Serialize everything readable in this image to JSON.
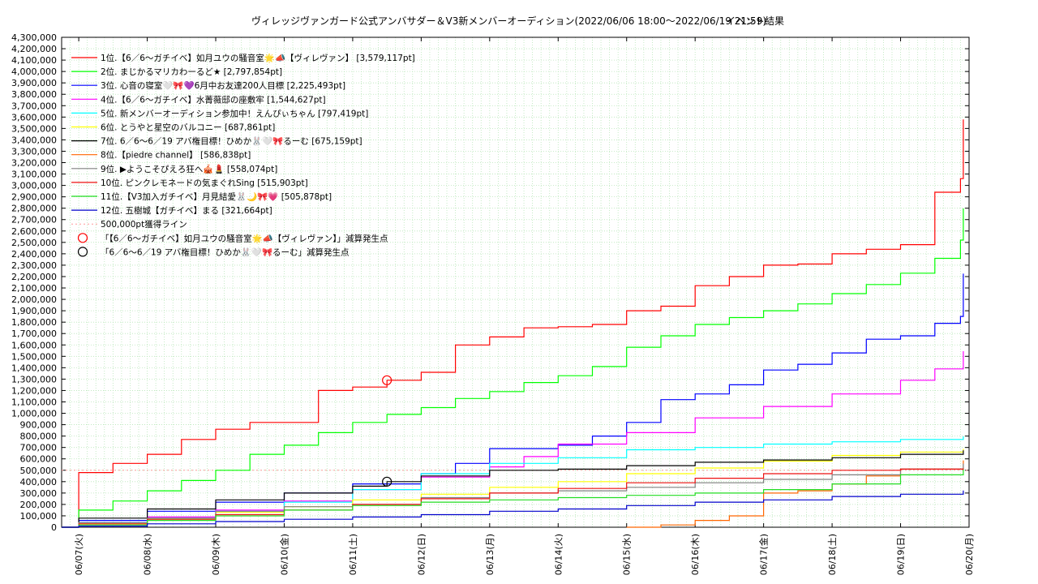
{
  "chart_data": {
    "type": "line",
    "title": "ヴィレッジヴァンガード公式アンバサダー＆V3新メンバーオーディション(2022/06/06 18:00〜2022/06/19 21:59)",
    "subtitle": "イベント結果",
    "ylim": [
      0,
      4300000
    ],
    "yticks": [
      "0",
      "100,000",
      "200,000",
      "300,000",
      "400,000",
      "500,000",
      "600,000",
      "700,000",
      "800,000",
      "900,000",
      "1,000,000",
      "1,100,000",
      "1,200,000",
      "1,300,000",
      "1,400,000",
      "1,500,000",
      "1,600,000",
      "1,700,000",
      "1,800,000",
      "1,900,000",
      "2,000,000",
      "2,100,000",
      "2,200,000",
      "2,300,000",
      "2,400,000",
      "2,500,000",
      "2,600,000",
      "2,700,000",
      "2,800,000",
      "2,900,000",
      "3,000,000",
      "3,100,000",
      "3,200,000",
      "3,300,000",
      "3,400,000",
      "3,500,000",
      "3,600,000",
      "3,700,000",
      "3,800,000",
      "3,900,000",
      "4,000,000",
      "4,100,000",
      "4,200,000",
      "4,300,000"
    ],
    "xticks": [
      "06/07(火)",
      "06/08(水)",
      "06/09(木)",
      "06/10(金)",
      "06/11(土)",
      "06/12(日)",
      "06/13(月)",
      "06/14(火)",
      "06/15(水)",
      "06/16(木)",
      "06/17(金)",
      "06/18(土)",
      "06/19(日)",
      "06/20(月)"
    ],
    "xlim": [
      "2022-06-06 18:00",
      "2022-06-20 00:00"
    ],
    "grid": true,
    "legend_position": "top-left",
    "series": [
      {
        "name": "1位.【6／6〜ガチイベ】如月ユウの騒音室🌟📣【ヴィレヴァン】 [3,579,117pt]",
        "color": "#ff0000",
        "x": [
          "2022-06-06 18:00",
          "2022-06-07 00:00",
          "2022-06-07 12:00",
          "2022-06-08 00:00",
          "2022-06-08 12:00",
          "2022-06-09 00:00",
          "2022-06-09 12:00",
          "2022-06-10 00:00",
          "2022-06-10 12:00",
          "2022-06-11 00:00",
          "2022-06-11 12:00",
          "2022-06-12 00:00",
          "2022-06-12 12:00",
          "2022-06-13 00:00",
          "2022-06-13 12:00",
          "2022-06-14 00:00",
          "2022-06-14 12:00",
          "2022-06-15 00:00",
          "2022-06-15 12:00",
          "2022-06-16 00:00",
          "2022-06-16 12:00",
          "2022-06-17 00:00",
          "2022-06-17 12:00",
          "2022-06-18 00:00",
          "2022-06-18 12:00",
          "2022-06-19 00:00",
          "2022-06-19 12:00",
          "2022-06-19 21:00",
          "2022-06-19 21:59"
        ],
        "y": [
          0,
          480000,
          560000,
          640000,
          770000,
          860000,
          920000,
          920000,
          1200000,
          1230000,
          1290000,
          1360000,
          1600000,
          1670000,
          1750000,
          1760000,
          1780000,
          1900000,
          1940000,
          2120000,
          2200000,
          2300000,
          2310000,
          2400000,
          2440000,
          2480000,
          2940000,
          3060000,
          3579117
        ]
      },
      {
        "name": "2位. まじかるマリカわーるど★ [2,797,854pt]",
        "color": "#00ff00",
        "x": [
          "2022-06-06 18:00",
          "2022-06-07 00:00",
          "2022-06-07 12:00",
          "2022-06-08 00:00",
          "2022-06-08 12:00",
          "2022-06-09 00:00",
          "2022-06-09 12:00",
          "2022-06-10 00:00",
          "2022-06-10 12:00",
          "2022-06-11 00:00",
          "2022-06-11 12:00",
          "2022-06-12 00:00",
          "2022-06-12 12:00",
          "2022-06-13 00:00",
          "2022-06-13 12:00",
          "2022-06-14 00:00",
          "2022-06-14 12:00",
          "2022-06-15 00:00",
          "2022-06-15 12:00",
          "2022-06-16 00:00",
          "2022-06-16 12:00",
          "2022-06-17 00:00",
          "2022-06-17 12:00",
          "2022-06-18 00:00",
          "2022-06-18 12:00",
          "2022-06-19 00:00",
          "2022-06-19 12:00",
          "2022-06-19 21:00",
          "2022-06-19 21:59"
        ],
        "y": [
          0,
          150000,
          230000,
          320000,
          410000,
          500000,
          640000,
          720000,
          830000,
          920000,
          990000,
          1050000,
          1130000,
          1190000,
          1270000,
          1330000,
          1410000,
          1580000,
          1680000,
          1780000,
          1840000,
          1900000,
          1960000,
          2050000,
          2130000,
          2230000,
          2360000,
          2520000,
          2797854
        ]
      },
      {
        "name": "3位. 心音の寝室🤍🎀💜6月中お友達200人目標 [2,225,493pt]",
        "color": "#0000ff",
        "x": [
          "2022-06-06 18:00",
          "2022-06-07 00:00",
          "2022-06-08 00:00",
          "2022-06-09 00:00",
          "2022-06-10 00:00",
          "2022-06-11 00:00",
          "2022-06-12 00:00",
          "2022-06-12 12:00",
          "2022-06-13 00:00",
          "2022-06-14 00:00",
          "2022-06-14 12:00",
          "2022-06-15 00:00",
          "2022-06-15 12:00",
          "2022-06-16 00:00",
          "2022-06-16 12:00",
          "2022-06-17 00:00",
          "2022-06-17 12:00",
          "2022-06-18 00:00",
          "2022-06-18 12:00",
          "2022-06-19 00:00",
          "2022-06-19 12:00",
          "2022-06-19 21:00",
          "2022-06-19 21:59"
        ],
        "y": [
          0,
          60000,
          140000,
          220000,
          300000,
          380000,
          470000,
          560000,
          690000,
          720000,
          800000,
          920000,
          1120000,
          1170000,
          1250000,
          1380000,
          1430000,
          1530000,
          1650000,
          1680000,
          1790000,
          1850000,
          2225493
        ]
      },
      {
        "name": "4位.【6／6〜ガチイベ】水菁薇邸の座敷牢 [1,544,627pt]",
        "color": "#ff00ff",
        "x": [
          "2022-06-06 18:00",
          "2022-06-07 00:00",
          "2022-06-08 00:00",
          "2022-06-09 00:00",
          "2022-06-10 00:00",
          "2022-06-11 00:00",
          "2022-06-12 00:00",
          "2022-06-13 00:00",
          "2022-06-13 12:00",
          "2022-06-14 00:00",
          "2022-06-15 00:00",
          "2022-06-16 00:00",
          "2022-06-17 00:00",
          "2022-06-18 00:00",
          "2022-06-19 00:00",
          "2022-06-19 12:00",
          "2022-06-19 21:59"
        ],
        "y": [
          0,
          40000,
          90000,
          150000,
          230000,
          330000,
          440000,
          530000,
          620000,
          730000,
          830000,
          960000,
          1060000,
          1170000,
          1290000,
          1390000,
          1544627
        ]
      },
      {
        "name": "5位. 新メンバーオーディション参加中！えんぴぃちゃん [797,419pt]",
        "color": "#00ffff",
        "x": [
          "2022-06-06 18:00",
          "2022-06-07 00:00",
          "2022-06-08 00:00",
          "2022-06-09 00:00",
          "2022-06-10 00:00",
          "2022-06-11 00:00",
          "2022-06-12 00:00",
          "2022-06-13 00:00",
          "2022-06-14 00:00",
          "2022-06-15 00:00",
          "2022-06-16 00:00",
          "2022-06-17 00:00",
          "2022-06-18 00:00",
          "2022-06-19 00:00",
          "2022-06-19 21:59"
        ],
        "y": [
          0,
          40000,
          80000,
          140000,
          220000,
          330000,
          470000,
          560000,
          610000,
          680000,
          700000,
          730000,
          750000,
          770000,
          797419
        ]
      },
      {
        "name": "6位. とうやと星空のバルコニー [687,861pt]",
        "color": "#ffff00",
        "x": [
          "2022-06-06 18:00",
          "2022-06-07 00:00",
          "2022-06-08 00:00",
          "2022-06-09 00:00",
          "2022-06-10 00:00",
          "2022-06-11 00:00",
          "2022-06-12 00:00",
          "2022-06-13 00:00",
          "2022-06-14 00:00",
          "2022-06-15 00:00",
          "2022-06-16 00:00",
          "2022-06-17 00:00",
          "2022-06-18 00:00",
          "2022-06-19 00:00",
          "2022-06-19 21:59"
        ],
        "y": [
          0,
          30000,
          70000,
          130000,
          180000,
          240000,
          290000,
          350000,
          400000,
          470000,
          520000,
          580000,
          630000,
          660000,
          687861
        ]
      },
      {
        "name": "7位. 6／6〜6／19 アバ権目標！ひめか🐰🤍🎀るーむ [675,159pt]",
        "color": "#000000",
        "x": [
          "2022-06-06 18:00",
          "2022-06-07 00:00",
          "2022-06-08 00:00",
          "2022-06-09 00:00",
          "2022-06-10 00:00",
          "2022-06-11 00:00",
          "2022-06-11 12:00",
          "2022-06-12 00:00",
          "2022-06-13 00:00",
          "2022-06-14 00:00",
          "2022-06-15 00:00",
          "2022-06-16 00:00",
          "2022-06-17 00:00",
          "2022-06-18 00:00",
          "2022-06-19 00:00",
          "2022-06-19 21:59"
        ],
        "y": [
          0,
          80000,
          160000,
          240000,
          300000,
          360000,
          400000,
          450000,
          500000,
          510000,
          540000,
          570000,
          590000,
          610000,
          640000,
          675159
        ]
      },
      {
        "name": "8位.【piedre channel】 [586,838pt]",
        "color": "#ff6600",
        "x": [
          "2022-06-15 00:00",
          "2022-06-15 12:00",
          "2022-06-16 00:00",
          "2022-06-16 12:00",
          "2022-06-17 00:00",
          "2022-06-17 12:00",
          "2022-06-18 00:00",
          "2022-06-18 12:00",
          "2022-06-19 00:00",
          "2022-06-19 21:59"
        ],
        "y": [
          0,
          20000,
          60000,
          100000,
          300000,
          320000,
          380000,
          450000,
          510000,
          586838
        ]
      },
      {
        "name": "9位. ▶ようこそぴえろ狂へ🎪💄 [558,074pt]",
        "color": "#808080",
        "x": [
          "2022-06-06 18:00",
          "2022-06-07 00:00",
          "2022-06-08 00:00",
          "2022-06-09 00:00",
          "2022-06-10 00:00",
          "2022-06-11 00:00",
          "2022-06-12 00:00",
          "2022-06-13 00:00",
          "2022-06-14 00:00",
          "2022-06-15 00:00",
          "2022-06-16 00:00",
          "2022-06-17 00:00",
          "2022-06-18 00:00",
          "2022-06-19 00:00",
          "2022-06-19 21:59"
        ],
        "y": [
          0,
          40000,
          80000,
          140000,
          180000,
          200000,
          260000,
          300000,
          320000,
          350000,
          390000,
          420000,
          460000,
          510000,
          558074
        ]
      },
      {
        "name": "10位. ピンクレモネードの気まぐれSing [515,903pt]",
        "color": "#ee1111",
        "x": [
          "2022-06-06 18:00",
          "2022-06-07 00:00",
          "2022-06-08 00:00",
          "2022-06-09 00:00",
          "2022-06-10 00:00",
          "2022-06-11 00:00",
          "2022-06-12 00:00",
          "2022-06-13 00:00",
          "2022-06-14 00:00",
          "2022-06-15 00:00",
          "2022-06-16 00:00",
          "2022-06-17 00:00",
          "2022-06-18 00:00",
          "2022-06-19 00:00",
          "2022-06-19 21:59"
        ],
        "y": [
          0,
          30000,
          70000,
          110000,
          150000,
          200000,
          250000,
          300000,
          340000,
          390000,
          430000,
          470000,
          500000,
          510000,
          515903
        ]
      },
      {
        "name": "11位.【V3加入ガチイベ】月見結愛🐰🌙🎀💗 [505,878pt]",
        "color": "#22dd22",
        "x": [
          "2022-06-06 18:00",
          "2022-06-07 00:00",
          "2022-06-08 00:00",
          "2022-06-09 00:00",
          "2022-06-10 00:00",
          "2022-06-11 00:00",
          "2022-06-12 00:00",
          "2022-06-13 00:00",
          "2022-06-14 00:00",
          "2022-06-15 00:00",
          "2022-06-16 00:00",
          "2022-06-17 00:00",
          "2022-06-18 00:00",
          "2022-06-19 00:00",
          "2022-06-19 21:59"
        ],
        "y": [
          0,
          20000,
          60000,
          100000,
          150000,
          190000,
          220000,
          240000,
          260000,
          280000,
          300000,
          330000,
          380000,
          460000,
          505878
        ]
      },
      {
        "name": "12位. 五樹城【ガチイベ】まる [321,664pt]",
        "color": "#0000cc",
        "x": [
          "2022-06-06 18:00",
          "2022-06-07 00:00",
          "2022-06-08 00:00",
          "2022-06-09 00:00",
          "2022-06-10 00:00",
          "2022-06-11 00:00",
          "2022-06-12 00:00",
          "2022-06-13 00:00",
          "2022-06-14 00:00",
          "2022-06-15 00:00",
          "2022-06-16 00:00",
          "2022-06-17 00:00",
          "2022-06-18 00:00",
          "2022-06-19 00:00",
          "2022-06-19 21:59"
        ],
        "y": [
          0,
          10000,
          30000,
          50000,
          70000,
          90000,
          110000,
          140000,
          160000,
          190000,
          220000,
          240000,
          270000,
          290000,
          321664
        ]
      }
    ],
    "reference_line": {
      "name": "500,000pt獲得ライン",
      "value": 500000,
      "color": "#ff9999"
    },
    "markers": [
      {
        "name": "「【6／6〜ガチイベ】如月ユウの騒音室🌟📣【ヴィレヴァン】」減算発生点",
        "color": "#ff0000",
        "x": "2022-06-11 12:00",
        "y": 1290000
      },
      {
        "name": "「6／6〜6／19 アバ権目標！ひめか🐰🤍🎀るーむ」減算発生点",
        "color": "#000000",
        "x": "2022-06-11 12:00",
        "y": 400000
      }
    ]
  }
}
